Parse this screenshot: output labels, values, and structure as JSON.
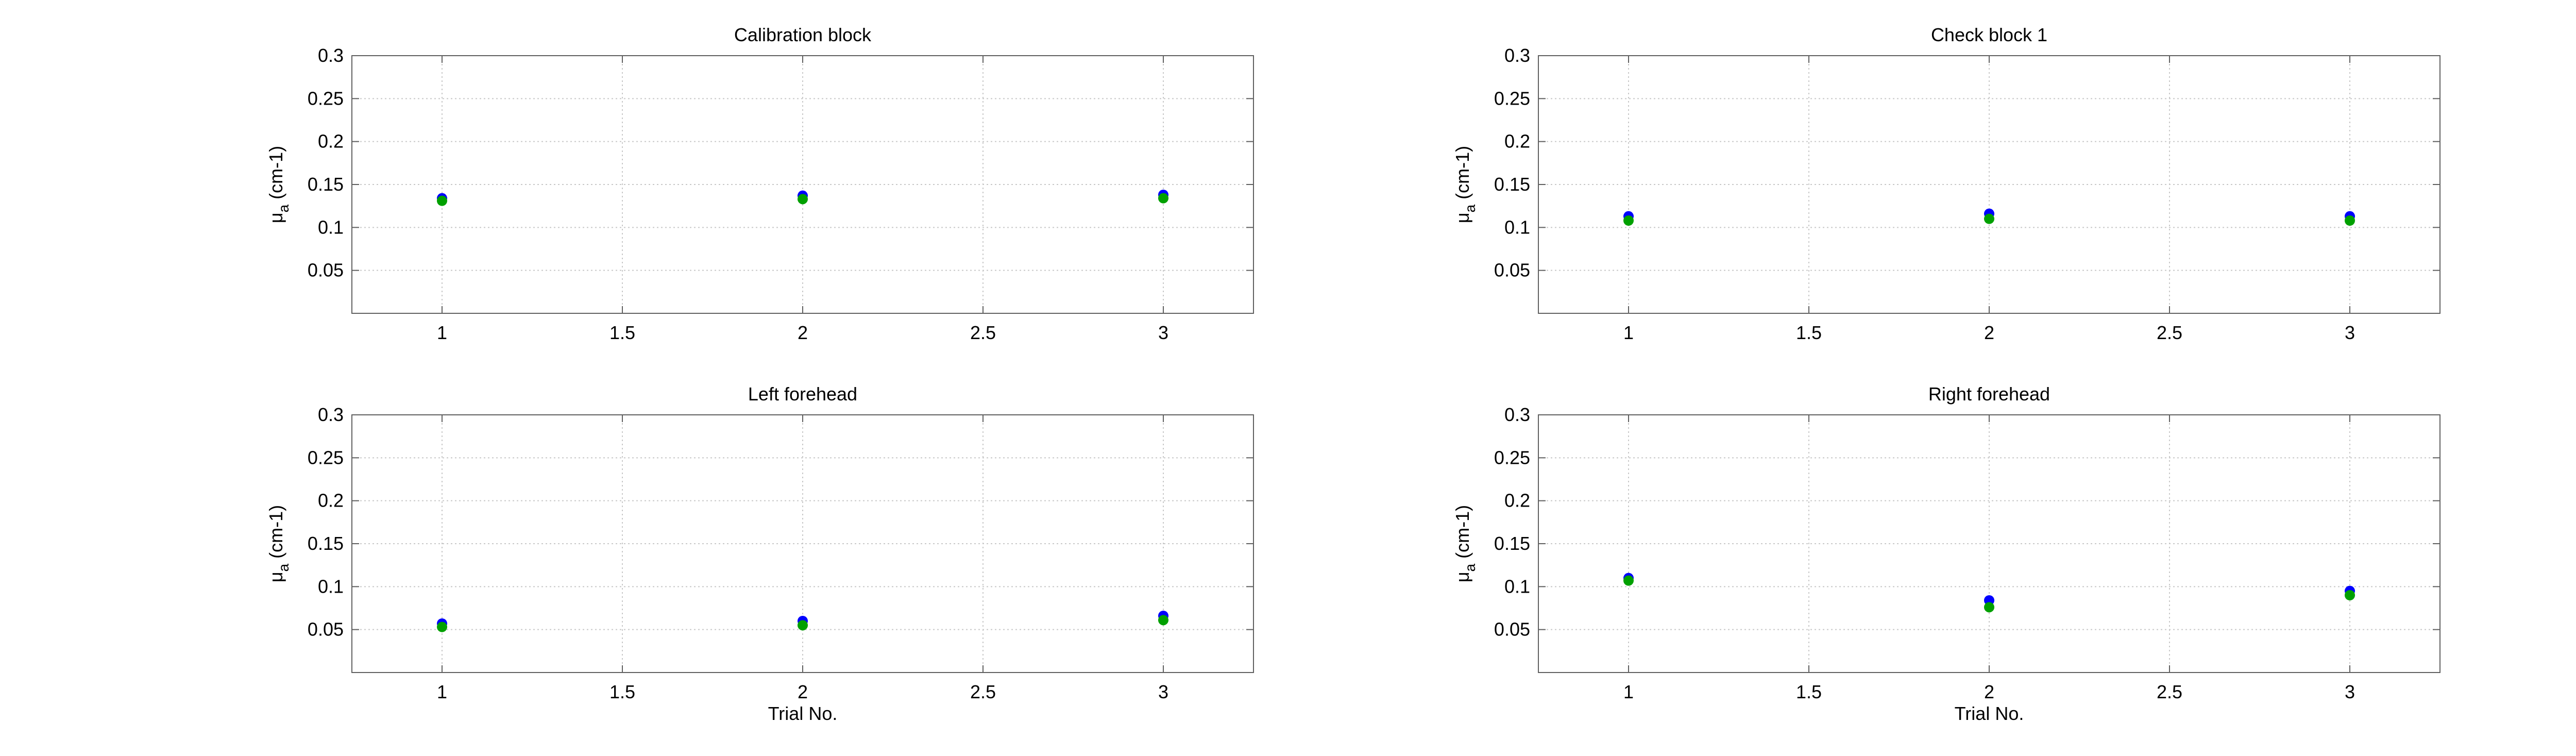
{
  "figure": {
    "colors": {
      "series_blue": "#0000ff",
      "series_green": "#00a000",
      "axes": "#606060",
      "grid": "#c8c8c8",
      "background": "#ffffff"
    }
  },
  "chart_data": [
    {
      "type": "scatter",
      "title": "Calibration block",
      "xlabel": "",
      "ylabel": "μa (cm-1)",
      "xlim": [
        0.75,
        3.25
      ],
      "ylim": [
        0,
        0.3
      ],
      "xticks": [
        1,
        1.5,
        2,
        2.5,
        3
      ],
      "xtick_labels": [
        "1",
        "1.5",
        "2",
        "2.5",
        "3"
      ],
      "yticks": [
        0.05,
        0.1,
        0.15,
        0.2,
        0.25,
        0.3
      ],
      "ytick_labels": [
        "0.05",
        "0.1",
        "0.15",
        "0.2",
        "0.25",
        "0.3"
      ],
      "grid": true,
      "series": [
        {
          "color": "#0000ff",
          "x": [
            1,
            2,
            3
          ],
          "y": [
            0.134,
            0.137,
            0.138
          ]
        },
        {
          "color": "#00a000",
          "x": [
            1,
            2,
            3
          ],
          "y": [
            0.131,
            0.133,
            0.134
          ]
        }
      ]
    },
    {
      "type": "scatter",
      "title": "Check block 1",
      "xlabel": "",
      "ylabel": "μa (cm-1)",
      "xlim": [
        0.75,
        3.25
      ],
      "ylim": [
        0,
        0.3
      ],
      "xticks": [
        1,
        1.5,
        2,
        2.5,
        3
      ],
      "xtick_labels": [
        "1",
        "1.5",
        "2",
        "2.5",
        "3"
      ],
      "yticks": [
        0.05,
        0.1,
        0.15,
        0.2,
        0.25,
        0.3
      ],
      "ytick_labels": [
        "0.05",
        "0.1",
        "0.15",
        "0.2",
        "0.25",
        "0.3"
      ],
      "grid": true,
      "series": [
        {
          "color": "#0000ff",
          "x": [
            1,
            2,
            3
          ],
          "y": [
            0.113,
            0.116,
            0.113
          ]
        },
        {
          "color": "#00a000",
          "x": [
            1,
            2,
            3
          ],
          "y": [
            0.108,
            0.11,
            0.108
          ]
        }
      ]
    },
    {
      "type": "scatter",
      "title": "Left forehead",
      "xlabel": "Trial No.",
      "ylabel": "μa (cm-1)",
      "xlim": [
        0.75,
        3.25
      ],
      "ylim": [
        0,
        0.3
      ],
      "xticks": [
        1,
        1.5,
        2,
        2.5,
        3
      ],
      "xtick_labels": [
        "1",
        "1.5",
        "2",
        "2.5",
        "3"
      ],
      "yticks": [
        0.05,
        0.1,
        0.15,
        0.2,
        0.25,
        0.3
      ],
      "ytick_labels": [
        "0.05",
        "0.1",
        "0.15",
        "0.2",
        "0.25",
        "0.3"
      ],
      "grid": true,
      "series": [
        {
          "color": "#0000ff",
          "x": [
            1,
            2,
            3
          ],
          "y": [
            0.057,
            0.06,
            0.066
          ]
        },
        {
          "color": "#00a000",
          "x": [
            1,
            2,
            3
          ],
          "y": [
            0.053,
            0.055,
            0.061
          ]
        }
      ]
    },
    {
      "type": "scatter",
      "title": "Right forehead",
      "xlabel": "Trial No.",
      "ylabel": "μa (cm-1)",
      "xlim": [
        0.75,
        3.25
      ],
      "ylim": [
        0,
        0.3
      ],
      "xticks": [
        1,
        1.5,
        2,
        2.5,
        3
      ],
      "xtick_labels": [
        "1",
        "1.5",
        "2",
        "2.5",
        "3"
      ],
      "yticks": [
        0.05,
        0.1,
        0.15,
        0.2,
        0.25,
        0.3
      ],
      "ytick_labels": [
        "0.05",
        "0.1",
        "0.15",
        "0.2",
        "0.25",
        "0.3"
      ],
      "grid": true,
      "series": [
        {
          "color": "#0000ff",
          "x": [
            1,
            2,
            3
          ],
          "y": [
            0.11,
            0.084,
            0.095
          ]
        },
        {
          "color": "#00a000",
          "x": [
            1,
            2,
            3
          ],
          "y": [
            0.107,
            0.076,
            0.09
          ]
        }
      ]
    }
  ]
}
